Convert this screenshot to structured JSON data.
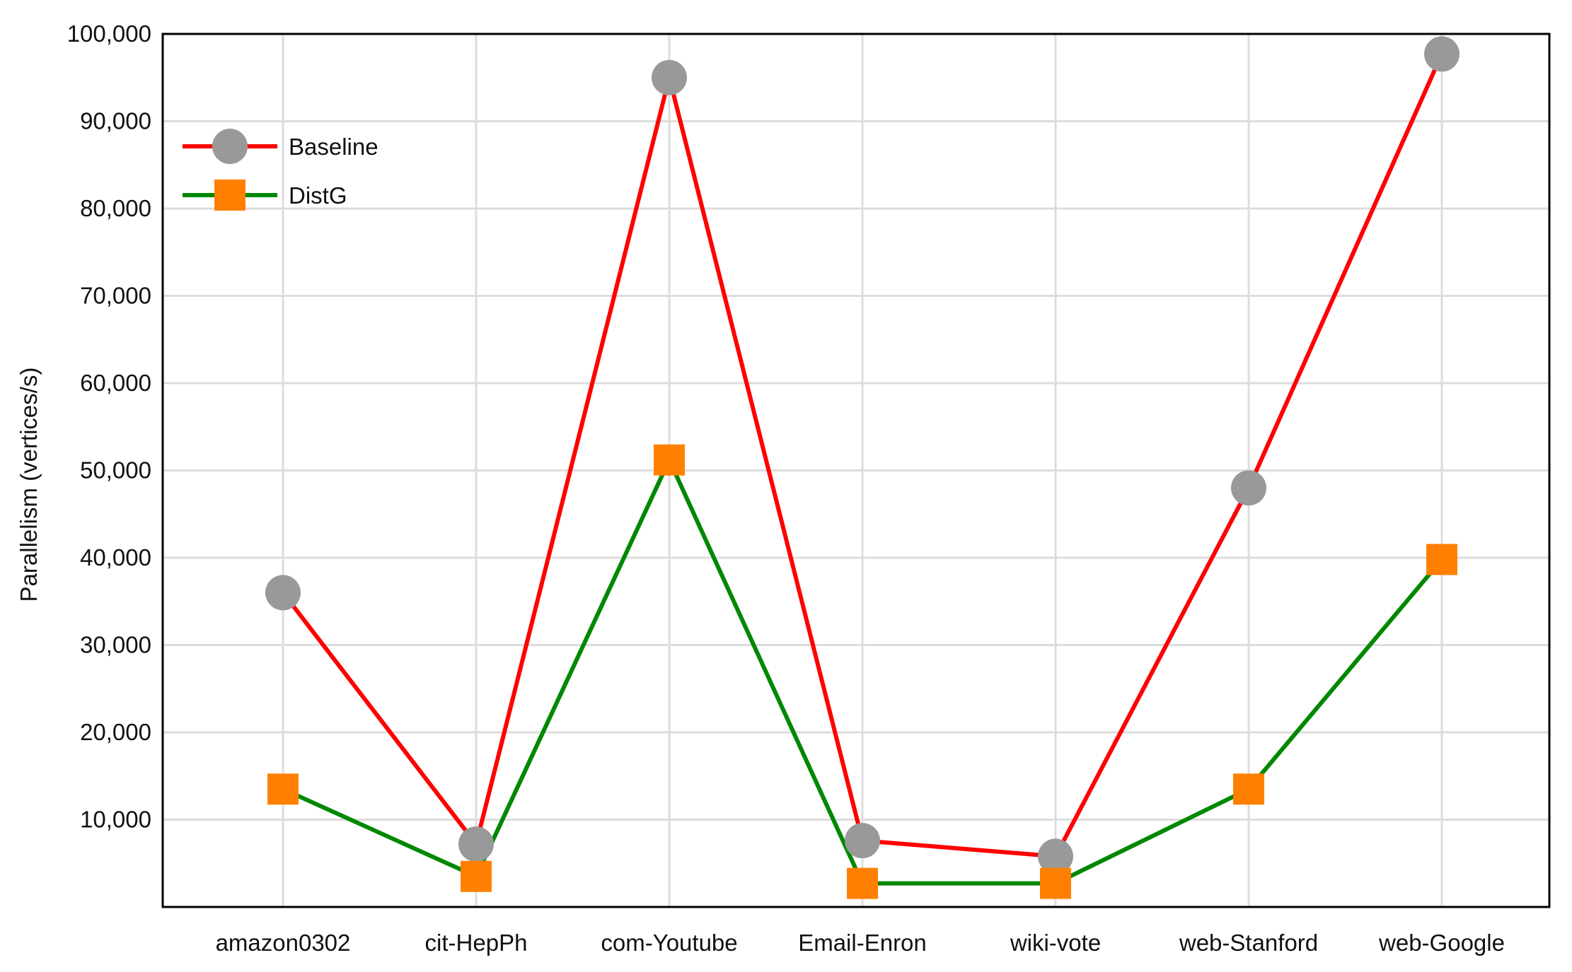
{
  "chart_data": {
    "type": "line",
    "title": "",
    "xlabel": "",
    "ylabel": "Parallelism  (vertices/s)",
    "categories": [
      "amazon0302",
      "cit-HepPh",
      "com-Youtube",
      "Email-Enron",
      "wiki-vote",
      "web-Stanford",
      "web-Google"
    ],
    "y_ticks": [
      10000,
      20000,
      30000,
      40000,
      50000,
      60000,
      70000,
      80000,
      90000,
      100000
    ],
    "y_tick_labels": [
      "10,000",
      "20,000",
      "30,000",
      "40,000",
      "50,000",
      "60,000",
      "70,000",
      "80,000",
      "90,000",
      "100,000"
    ],
    "ylim": [
      0,
      100000
    ],
    "grid": true,
    "legend_position": "top-left",
    "series": [
      {
        "name": "Baseline",
        "values": [
          36000,
          7200,
          95000,
          7600,
          5800,
          48000,
          97700
        ],
        "line_color": "#ff0000",
        "marker": "circle",
        "marker_color": "#999999"
      },
      {
        "name": "DistG",
        "values": [
          13500,
          3500,
          51200,
          2700,
          2700,
          13500,
          39800
        ],
        "line_color": "#008800",
        "marker": "square",
        "marker_color": "#ff8000"
      }
    ]
  }
}
